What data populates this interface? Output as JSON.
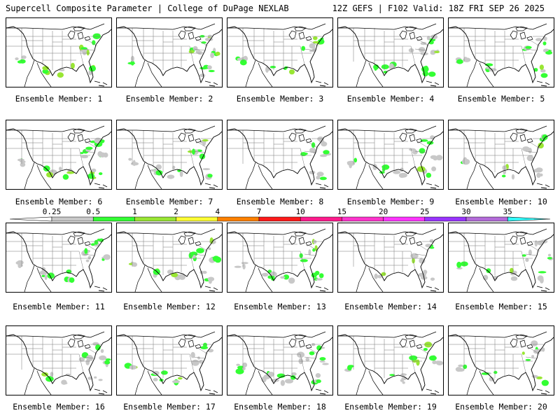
{
  "header": {
    "left": "Supercell Composite Parameter | College of DuPage NEXLAB",
    "right": "12Z GEFS | F102 Valid: 18Z FRI SEP 26 2025"
  },
  "colorbar": {
    "labels": [
      "0.25",
      "0.5",
      "1",
      "2",
      "4",
      "7",
      "10",
      "15",
      "20",
      "25",
      "30",
      "35"
    ],
    "colors": [
      "#c8c8c8",
      "#33ff33",
      "#99e633",
      "#ffff33",
      "#ff8000",
      "#ff1a1a",
      "#ff1a8c",
      "#ff33cc",
      "#ff33ff",
      "#9933ff",
      "#b36bd9",
      "#33ffff"
    ]
  },
  "panels": [
    {
      "caption": "Ensemble Member: 1"
    },
    {
      "caption": "Ensemble Member: 2"
    },
    {
      "caption": "Ensemble Member: 3"
    },
    {
      "caption": "Ensemble Member: 4"
    },
    {
      "caption": "Ensemble Member: 5"
    },
    {
      "caption": "Ensemble Member: 6"
    },
    {
      "caption": "Ensemble Member: 7"
    },
    {
      "caption": "Ensemble Member: 8"
    },
    {
      "caption": "Ensemble Member: 9"
    },
    {
      "caption": "Ensemble Member: 10"
    },
    {
      "caption": "Ensemble Member: 11"
    },
    {
      "caption": "Ensemble Member: 12"
    },
    {
      "caption": "Ensemble Member: 13"
    },
    {
      "caption": "Ensemble Member: 14"
    },
    {
      "caption": "Ensemble Member: 15"
    },
    {
      "caption": "Ensemble Member: 16"
    },
    {
      "caption": "Ensemble Member: 17"
    },
    {
      "caption": "Ensemble Member: 18"
    },
    {
      "caption": "Ensemble Member: 19"
    },
    {
      "caption": "Ensemble Member: 20"
    }
  ]
}
